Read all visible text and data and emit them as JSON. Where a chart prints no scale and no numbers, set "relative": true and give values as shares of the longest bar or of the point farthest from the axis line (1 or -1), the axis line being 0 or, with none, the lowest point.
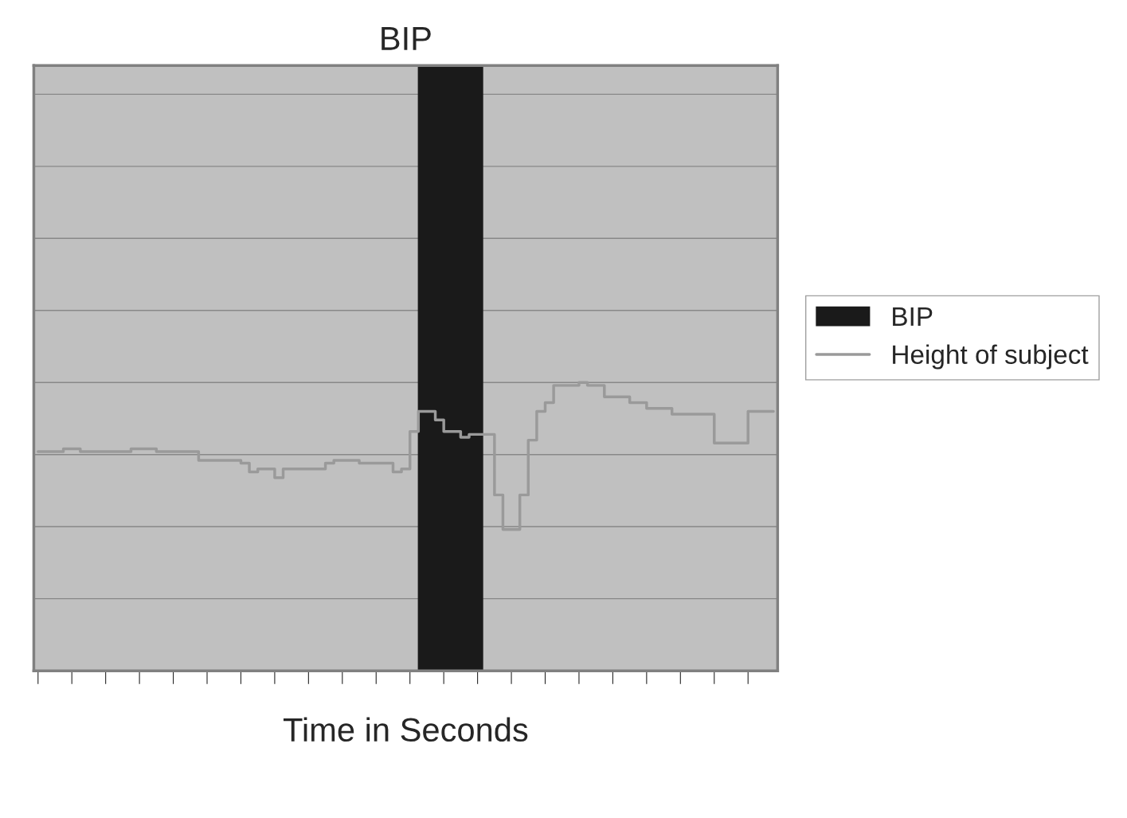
{
  "chart_data": {
    "type": "step",
    "title": "BIP",
    "xlabel": "Time in Seconds",
    "relative": true,
    "categories": [
      null,
      null,
      null,
      null,
      null,
      null,
      null,
      null,
      null,
      null,
      null,
      null,
      null,
      null,
      null,
      null,
      null,
      null,
      null,
      null,
      null,
      null,
      null,
      null,
      null,
      null,
      null,
      null,
      null,
      null,
      null,
      null,
      null,
      null,
      null,
      null,
      null,
      null,
      null,
      null,
      null,
      null,
      null,
      null,
      null,
      null,
      null,
      null,
      null,
      null,
      null,
      null,
      null,
      null,
      null,
      null,
      null,
      null,
      null,
      null,
      null,
      null,
      null,
      null,
      null,
      null,
      null,
      null,
      null,
      null,
      null,
      null,
      null,
      null,
      null,
      null,
      null,
      null,
      null,
      null,
      null,
      null,
      null,
      null,
      null,
      null,
      null,
      null
    ],
    "series": [
      {
        "name": "Height of subject",
        "color": "#9a9a9a",
        "values": [
          0.76,
          0.76,
          0.76,
          0.77,
          0.77,
          0.76,
          0.76,
          0.76,
          0.76,
          0.76,
          0.76,
          0.77,
          0.77,
          0.77,
          0.76,
          0.76,
          0.76,
          0.76,
          0.76,
          0.73,
          0.73,
          0.73,
          0.73,
          0.73,
          0.72,
          0.69,
          0.7,
          0.7,
          0.67,
          0.7,
          0.7,
          0.7,
          0.7,
          0.7,
          0.72,
          0.73,
          0.73,
          0.73,
          0.72,
          0.72,
          0.72,
          0.72,
          0.69,
          0.7,
          0.83,
          0.9,
          0.9,
          0.87,
          0.83,
          0.83,
          0.81,
          0.82,
          0.82,
          0.82,
          0.61,
          0.49,
          0.49,
          0.61,
          0.8,
          0.9,
          0.93,
          0.99,
          0.99,
          0.99,
          1,
          0.99,
          0.99,
          0.95,
          0.95,
          0.95,
          0.93,
          0.93,
          0.91,
          0.91,
          0.91,
          0.89,
          0.89,
          0.89,
          0.89,
          0.89,
          0.79,
          0.79,
          0.79,
          0.79,
          0.9,
          0.9,
          0.9,
          0.9
        ]
      }
    ],
    "grid": "y",
    "legend": "right",
    "tick_labels": false
  }
}
